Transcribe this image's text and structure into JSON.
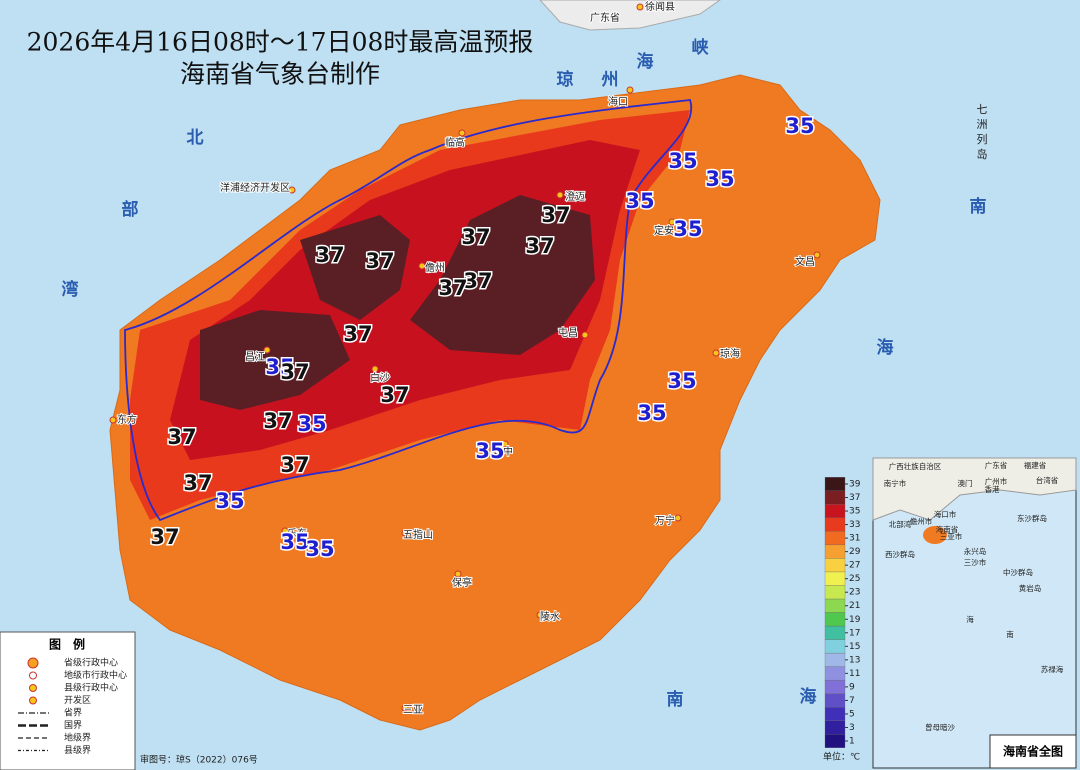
{
  "header": {
    "title": "2026年4月16日08时～17日08时最高温预报",
    "subtitle": "海南省气象台制作"
  },
  "sea_labels": [
    "琼",
    "州",
    "海",
    "峡",
    "北",
    "部",
    "湾",
    "南",
    "海",
    "南",
    "海",
    "七",
    "洲",
    "列",
    "岛"
  ],
  "places": [
    "广东省",
    "徐闻县",
    "海口",
    "临高",
    "澄迈",
    "儋州",
    "定安",
    "文昌",
    "屯昌",
    "琼海",
    "昌江",
    "白沙",
    "琼中",
    "东方",
    "五指山",
    "万宁",
    "乐东",
    "保亭",
    "陵水",
    "三亚",
    "洋浦经济开发区"
  ],
  "contour_labels": [
    35,
    35,
    35,
    35,
    35,
    35,
    35,
    35,
    35,
    35,
    35,
    35,
    35,
    37,
    37,
    37,
    37,
    37,
    37,
    37,
    37,
    37,
    37,
    37,
    37,
    37,
    37,
    37
  ],
  "colorbar": {
    "ticks": [
      1,
      3,
      5,
      7,
      9,
      11,
      13,
      15,
      17,
      19,
      21,
      23,
      25,
      27,
      29,
      31,
      33,
      35,
      37,
      39
    ],
    "colors": [
      "#201080",
      "#3020a0",
      "#4030b8",
      "#6050c8",
      "#8070d8",
      "#9090e0",
      "#a0b8e8",
      "#80d0e0",
      "#40c0a0",
      "#50c850",
      "#8cd850",
      "#c8e850",
      "#f0f050",
      "#f8d040",
      "#f5a030",
      "#f06a20",
      "#e83a1c",
      "#c8141e",
      "#7a1e22",
      "#3a1618"
    ],
    "unit_label": "单位：℃"
  },
  "legend": {
    "title": "图　例",
    "items": [
      "省级行政中心",
      "地级市行政中心",
      "县级行政中心",
      "开发区",
      "省界",
      "国界",
      "地级界",
      "县级界"
    ]
  },
  "footer": "审图号：琼S（2022）076号",
  "inset": {
    "title": "海南省全图",
    "labels": [
      "广西壮族自治区",
      "广东省",
      "福建省",
      "台湾省",
      "南宁市",
      "广州市",
      "澳门",
      "香港",
      "海口市",
      "北部湾",
      "儋州市",
      "海南省",
      "三亚市",
      "东沙群岛",
      "西沙群岛",
      "永兴岛",
      "三沙市",
      "中沙群岛",
      "黄岩岛",
      "南",
      "海",
      "苏禄海",
      "曾母暗沙"
    ]
  }
}
